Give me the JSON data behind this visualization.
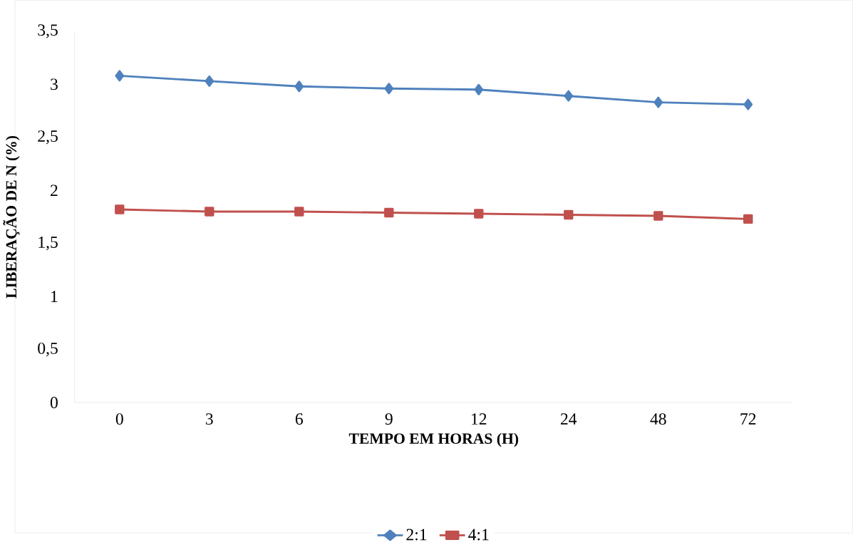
{
  "chart_data": {
    "type": "line",
    "xlabel": "TEMPO EM HORAS (H)",
    "ylabel": "LIBERAÇÃO DE N (%)",
    "categories": [
      "0",
      "3",
      "6",
      "9",
      "12",
      "24",
      "48",
      "72"
    ],
    "series": [
      {
        "name": "2:1",
        "color": "#4f81bd",
        "marker": "diamond",
        "values": [
          3.08,
          3.03,
          2.98,
          2.96,
          2.95,
          2.89,
          2.83,
          2.81
        ]
      },
      {
        "name": "4:1",
        "color": "#c0504d",
        "marker": "square",
        "values": [
          1.82,
          1.8,
          1.8,
          1.79,
          1.78,
          1.77,
          1.76,
          1.73
        ]
      }
    ],
    "ylim": [
      0,
      3.5
    ],
    "yticks": [
      0,
      {
        "value": 0.5,
        "label": "0,5"
      },
      1,
      {
        "value": 1.5,
        "label": "1,5"
      },
      2,
      {
        "value": 2.5,
        "label": "2,5"
      },
      3,
      {
        "value": 3.5,
        "label": "3,5"
      }
    ],
    "grid": false,
    "legend": "bottom",
    "line_style": "solid"
  }
}
